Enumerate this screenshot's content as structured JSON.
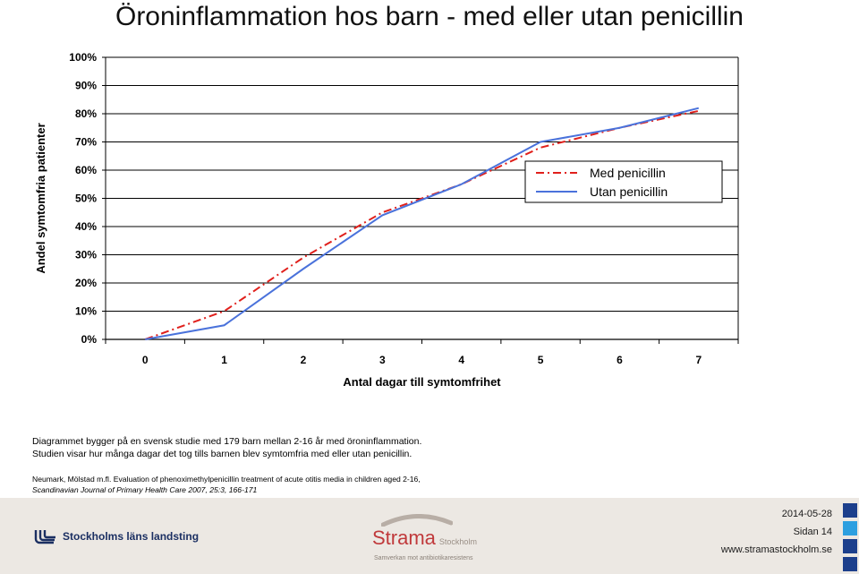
{
  "page": {
    "title": "Öroninflammation hos barn - med eller utan penicillin"
  },
  "chart_data": {
    "type": "line",
    "xlabel": "Antal dagar till symtomfrihet",
    "ylabel": "Andel symtomfria patienter",
    "x": [
      0,
      1,
      2,
      3,
      4,
      5,
      6,
      7
    ],
    "xlim": [
      -0.5,
      7.5
    ],
    "ylim": [
      0,
      100
    ],
    "ytick_labels": [
      "0%",
      "10%",
      "20%",
      "30%",
      "40%",
      "50%",
      "60%",
      "70%",
      "80%",
      "90%",
      "100%"
    ],
    "grid": "horizontal",
    "legend": "right",
    "series": [
      {
        "name": "Med penicillin",
        "values": [
          0,
          10,
          29,
          45,
          55,
          68,
          75,
          81
        ],
        "color": "#e0201c",
        "style": "dash-dot"
      },
      {
        "name": "Utan penicillin",
        "values": [
          0,
          5,
          25,
          44,
          55,
          70,
          75,
          82
        ],
        "color": "#4a72db",
        "style": "solid"
      }
    ]
  },
  "description": {
    "line1": "Diagrammet bygger på en svensk studie med 179 barn mellan 2-16 år med öroninflammation.",
    "line2": "Studien visar hur många dagar det tog tills barnen blev symtomfria med eller utan penicillin."
  },
  "reference": {
    "line1": "Neumark, Mölstad m.fl. Evaluation of phenoximethylpenicillin treatment of acute otitis media in children aged 2-16,",
    "line2": "Scandinavian Journal of Primary Health Care 2007, 25:3, 166-171"
  },
  "footer": {
    "org_name": "Stockholms läns landsting",
    "strama_name": "Strama",
    "strama_city": "Stockholm",
    "strama_tagline": "Samverkan mot antibiotikaresistens",
    "date": "2014-05-28",
    "page": "Sidan 14",
    "url": "www.stramastockholm.se",
    "square_colors": [
      "#1c3f8c",
      "#2d9fe0",
      "#1c3f8c",
      "#1c3f8c"
    ]
  }
}
